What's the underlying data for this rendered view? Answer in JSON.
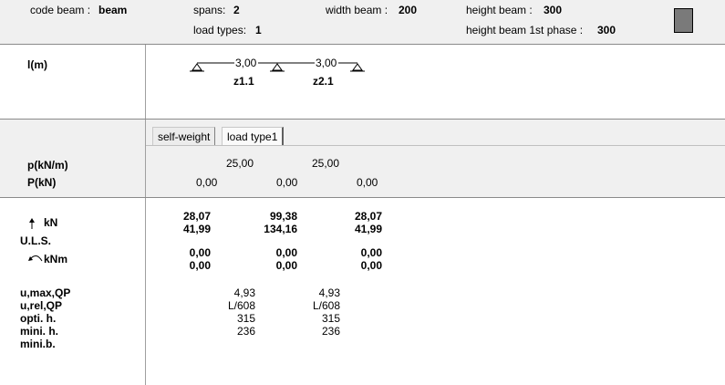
{
  "header": {
    "code_beam_label": "code beam :",
    "code_beam_value": "beam",
    "spans_label": "spans:",
    "spans_value": "2",
    "load_types_label": "load types:",
    "load_types_value": "1",
    "width_beam_label": "width beam :",
    "width_beam_value": "200",
    "height_beam_label": "height beam :",
    "height_beam_value": "300",
    "height_beam_1st_label": "height beam 1st phase :",
    "height_beam_1st_value": "300",
    "swatch_color": "#7a7a7a"
  },
  "geometry": {
    "label": "l(m)",
    "span_lengths": [
      "3,00",
      "3,00"
    ],
    "span_names": [
      "z1.1",
      "z2.1"
    ]
  },
  "loads": {
    "tabs": [
      "self-weight",
      "load type1"
    ],
    "active_tab": "load type1",
    "p_label": "p(kN/m)",
    "P_label": "P(kN)",
    "p_values": [
      "25,00",
      "25,00"
    ],
    "P_values": [
      "0,00",
      "0,00",
      "0,00"
    ]
  },
  "results": {
    "reaction_unit": "kN",
    "uls_label": "U.L.S.",
    "moment_unit": "kNm",
    "reaction_row1": [
      "28,07",
      "99,38",
      "28,07"
    ],
    "reaction_row2": [
      "41,99",
      "134,16",
      "41,99"
    ],
    "moment_row1": [
      "0,00",
      "0,00",
      "0,00"
    ],
    "moment_row2": [
      "0,00",
      "0,00",
      "0,00"
    ],
    "u_max_qp_label": "u,max,QP",
    "u_rel_qp_label": "u,rel,QP",
    "opti_h_label": "opti. h.",
    "mini_h_label": "mini. h.",
    "mini_b_label": "mini.b.",
    "u_max_qp": [
      "4,93",
      "4,93"
    ],
    "u_rel_qp": [
      "L/608",
      "L/608"
    ],
    "opti_h": [
      "315",
      "315"
    ],
    "mini_h": [
      "236",
      "236"
    ]
  }
}
